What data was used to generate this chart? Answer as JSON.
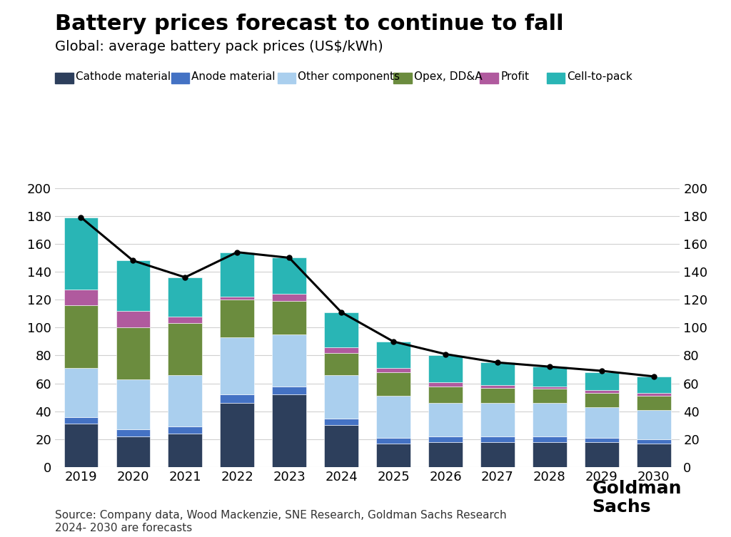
{
  "title": "Battery prices forecast to continue to fall",
  "subtitle": "Global: average battery pack prices (US$/kWh)",
  "source": "Source: Company data, Wood Mackenzie, SNE Research, Goldman Sachs Research\n2024- 2030 are forecasts",
  "years": [
    2019,
    2020,
    2021,
    2022,
    2023,
    2024,
    2025,
    2026,
    2027,
    2028,
    2029,
    2030
  ],
  "components": {
    "Cathode material": {
      "color": "#2d3f5c",
      "values": [
        31,
        22,
        24,
        46,
        52,
        30,
        17,
        18,
        18,
        18,
        18,
        17
      ]
    },
    "Anode material": {
      "color": "#4472c4",
      "values": [
        5,
        5,
        5,
        6,
        6,
        5,
        4,
        4,
        4,
        4,
        3,
        3
      ]
    },
    "Other components": {
      "color": "#aacfee",
      "values": [
        35,
        36,
        37,
        41,
        37,
        31,
        30,
        24,
        24,
        24,
        22,
        21
      ]
    },
    "Opex, DD&A": {
      "color": "#6b8c3e",
      "values": [
        45,
        37,
        37,
        27,
        24,
        16,
        17,
        12,
        11,
        10,
        10,
        10
      ]
    },
    "Profit": {
      "color": "#b05a9e",
      "values": [
        11,
        12,
        5,
        2,
        5,
        4,
        3,
        3,
        2,
        2,
        2,
        2
      ]
    },
    "Cell-to-pack": {
      "color": "#29b5b5",
      "values": [
        52,
        36,
        28,
        32,
        26,
        25,
        19,
        19,
        16,
        14,
        13,
        12
      ]
    }
  },
  "line_values": [
    179,
    148,
    136,
    154,
    150,
    111,
    90,
    81,
    75,
    72,
    69,
    65
  ],
  "ylim": [
    0,
    200
  ],
  "yticks": [
    0,
    20,
    40,
    60,
    80,
    100,
    120,
    140,
    160,
    180,
    200
  ],
  "bg_color": "#ffffff",
  "grid_color": "#d0d0d0",
  "title_fontsize": 22,
  "subtitle_fontsize": 14,
  "legend_fontsize": 11,
  "tick_fontsize": 13,
  "source_fontsize": 11
}
